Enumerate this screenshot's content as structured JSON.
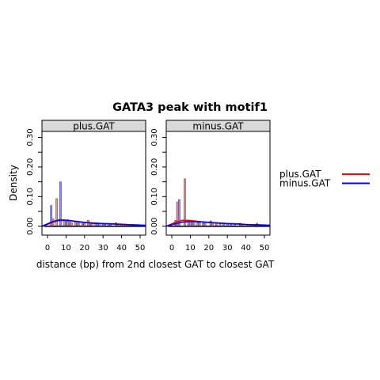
{
  "chart_data": {
    "type": "bar",
    "title": "GATA3 peak with motif1",
    "xlabel": "distance (bp) from 2nd closest GAT to closest GAT",
    "ylabel": "Density",
    "xlim": [
      -3,
      53
    ],
    "ylim": [
      -0.03,
      0.32
    ],
    "x_ticks": [
      0,
      10,
      20,
      30,
      40,
      50
    ],
    "y_ticks": [
      0.0,
      0.1,
      0.2,
      0.3
    ],
    "y_tick_labels": [
      "0.00",
      "0.10",
      "0.20",
      "0.30"
    ],
    "legend_position": "right",
    "legend": [
      {
        "label": "plus.GAT",
        "color": "#ff0000"
      },
      {
        "label": "minus.GAT",
        "color": "#0000ff"
      }
    ],
    "panels": [
      {
        "name": "plus.GAT",
        "series": [
          {
            "name": "plus.GAT",
            "color": "#ff0000",
            "bars": [
              [
                3,
                0.025
              ],
              [
                5,
                0.093
              ],
              [
                9,
                0.018
              ],
              [
                11,
                0.022
              ],
              [
                13,
                0.012
              ],
              [
                15,
                0.014
              ],
              [
                17,
                0.011
              ],
              [
                20,
                0.01
              ],
              [
                22,
                0.02
              ],
              [
                24,
                0.01
              ],
              [
                26,
                0.012
              ],
              [
                28,
                0.01
              ],
              [
                31,
                0.008
              ],
              [
                33,
                0.009
              ],
              [
                37,
                0.012
              ],
              [
                40,
                0.006
              ],
              [
                44,
                0.005
              ],
              [
                47,
                0.005
              ],
              [
                50,
                0.004
              ]
            ],
            "curve": [
              [
                -3,
                0.0
              ],
              [
                0,
                0.006
              ],
              [
                3,
                0.014
              ],
              [
                6,
                0.019
              ],
              [
                9,
                0.02
              ],
              [
                12,
                0.019
              ],
              [
                16,
                0.016
              ],
              [
                20,
                0.013
              ],
              [
                25,
                0.011
              ],
              [
                30,
                0.009
              ],
              [
                35,
                0.008
              ],
              [
                40,
                0.007
              ],
              [
                45,
                0.005
              ],
              [
                50,
                0.004
              ],
              [
                53,
                0.003
              ]
            ]
          },
          {
            "name": "minus.GAT",
            "color": "#0000ff",
            "bars": [
              [
                2,
                0.07
              ],
              [
                7,
                0.15
              ],
              [
                10,
                0.02
              ],
              [
                12,
                0.014
              ],
              [
                16,
                0.011
              ],
              [
                19,
                0.01
              ],
              [
                23,
                0.01
              ],
              [
                27,
                0.009
              ],
              [
                30,
                0.008
              ],
              [
                34,
                0.007
              ],
              [
                38,
                0.007
              ],
              [
                42,
                0.006
              ],
              [
                46,
                0.006
              ],
              [
                49,
                0.005
              ]
            ],
            "curve": [
              [
                -3,
                0.0
              ],
              [
                0,
                0.008
              ],
              [
                3,
                0.016
              ],
              [
                6,
                0.021
              ],
              [
                9,
                0.021
              ],
              [
                12,
                0.019
              ],
              [
                16,
                0.016
              ],
              [
                20,
                0.013
              ],
              [
                25,
                0.01
              ],
              [
                30,
                0.009
              ],
              [
                35,
                0.008
              ],
              [
                40,
                0.006
              ],
              [
                45,
                0.005
              ],
              [
                50,
                0.004
              ],
              [
                53,
                0.003
              ]
            ]
          }
        ]
      },
      {
        "name": "minus.GAT",
        "series": [
          {
            "name": "plus.GAT",
            "color": "#ff0000",
            "bars": [
              [
                3,
                0.082
              ],
              [
                7,
                0.16
              ],
              [
                10,
                0.02
              ],
              [
                12,
                0.015
              ],
              [
                15,
                0.012
              ],
              [
                18,
                0.01
              ],
              [
                22,
                0.01
              ],
              [
                26,
                0.008
              ],
              [
                30,
                0.007
              ],
              [
                34,
                0.007
              ],
              [
                38,
                0.006
              ],
              [
                43,
                0.006
              ],
              [
                46,
                0.01
              ],
              [
                50,
                0.004
              ]
            ],
            "curve": [
              [
                -3,
                0.0
              ],
              [
                0,
                0.008
              ],
              [
                3,
                0.016
              ],
              [
                6,
                0.02
              ],
              [
                9,
                0.02
              ],
              [
                12,
                0.018
              ],
              [
                16,
                0.015
              ],
              [
                20,
                0.013
              ],
              [
                25,
                0.011
              ],
              [
                30,
                0.009
              ],
              [
                35,
                0.008
              ],
              [
                40,
                0.006
              ],
              [
                45,
                0.005
              ],
              [
                50,
                0.004
              ],
              [
                53,
                0.003
              ]
            ]
          },
          {
            "name": "minus.GAT",
            "color": "#0000ff",
            "bars": [
              [
                2,
                0.02
              ],
              [
                4,
                0.09
              ],
              [
                9,
                0.018
              ],
              [
                11,
                0.015
              ],
              [
                14,
                0.012
              ],
              [
                17,
                0.011
              ],
              [
                21,
                0.018
              ],
              [
                24,
                0.01
              ],
              [
                28,
                0.008
              ],
              [
                32,
                0.008
              ],
              [
                37,
                0.01
              ],
              [
                41,
                0.006
              ],
              [
                45,
                0.005
              ],
              [
                49,
                0.004
              ]
            ],
            "curve": [
              [
                -3,
                0.0
              ],
              [
                0,
                0.005
              ],
              [
                3,
                0.01
              ],
              [
                6,
                0.014
              ],
              [
                9,
                0.016
              ],
              [
                12,
                0.016
              ],
              [
                16,
                0.015
              ],
              [
                20,
                0.013
              ],
              [
                25,
                0.011
              ],
              [
                30,
                0.009
              ],
              [
                35,
                0.008
              ],
              [
                40,
                0.006
              ],
              [
                45,
                0.005
              ],
              [
                50,
                0.004
              ],
              [
                53,
                0.003
              ]
            ]
          }
        ]
      }
    ]
  }
}
